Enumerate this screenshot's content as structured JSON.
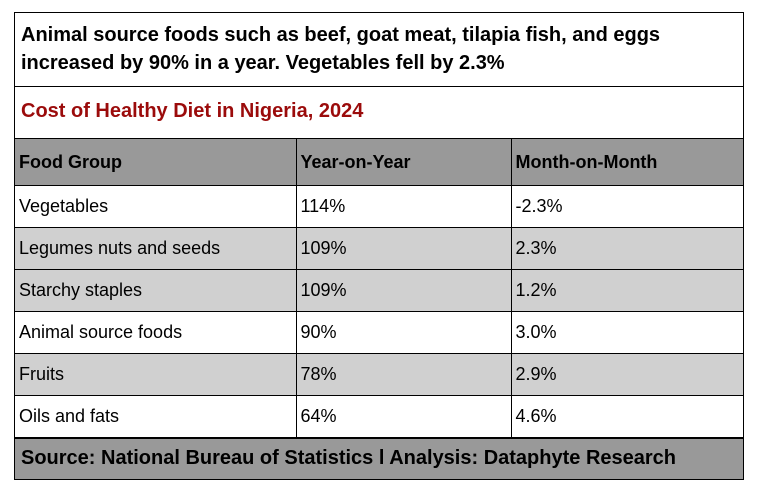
{
  "headline": "Animal source foods such as beef, goat meat, tilapia fish, and eggs increased by 90% in a year. Vegetables fell by 2.3%",
  "chart_data": {
    "type": "table",
    "title": "Cost of Healthy Diet in Nigeria, 2024",
    "columns": [
      "Food Group",
      "Year-on-Year",
      "Month-on-Month"
    ],
    "rows": [
      [
        "Vegetables",
        "114%",
        "-2.3%"
      ],
      [
        "Legumes nuts and seeds",
        "109%",
        "2.3%"
      ],
      [
        "Starchy staples",
        "109%",
        "1.2%"
      ],
      [
        "Animal source foods",
        "90%",
        "3.0%"
      ],
      [
        "Fruits",
        "78%",
        "2.9%"
      ],
      [
        "Oils and fats",
        "64%",
        "4.6%"
      ]
    ]
  },
  "colors": {
    "title": "#9b0b0b",
    "header_fill": "#999999",
    "shaded_row_fill": "#d0d0d0"
  },
  "footer": "Source: National Bureau of Statistics l Analysis: Dataphyte Research"
}
